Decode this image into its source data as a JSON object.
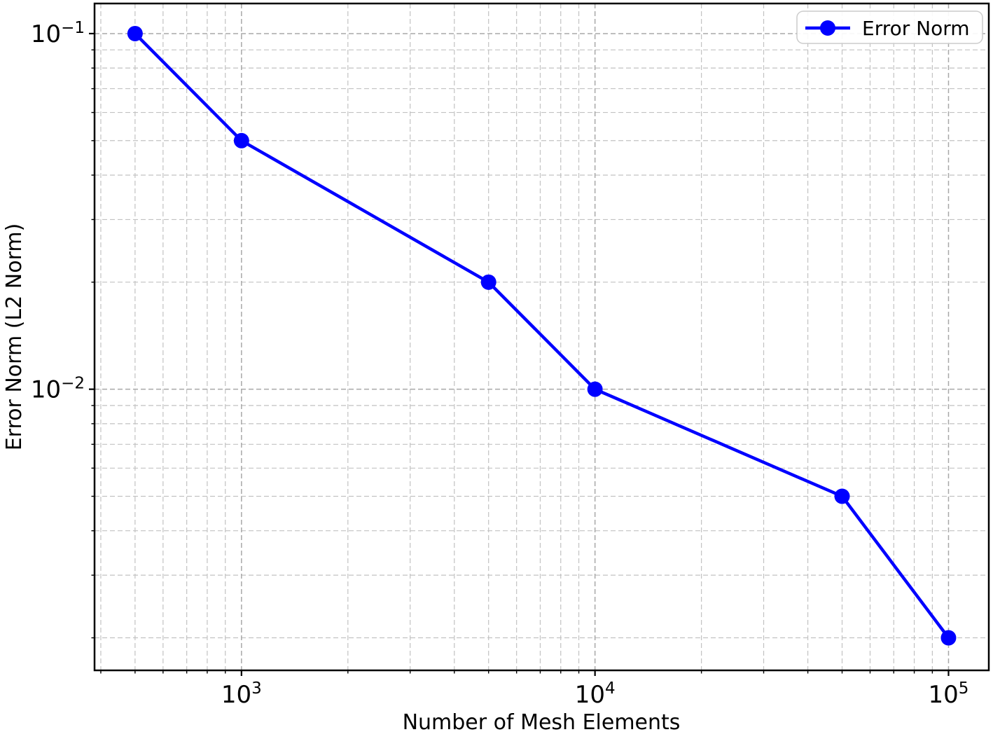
{
  "chart_data": {
    "type": "line",
    "title": "",
    "xlabel": "Number of Mesh Elements",
    "ylabel": "Error Norm (L2 Norm)",
    "xscale": "log",
    "yscale": "log",
    "xlim": [
      384,
      130000
    ],
    "ylim": [
      0.00162,
      0.1215
    ],
    "x": [
      500,
      1000,
      5000,
      10000,
      50000,
      100000
    ],
    "series": [
      {
        "name": "Error Norm",
        "color": "#0000ff",
        "values": [
          0.1,
          0.05,
          0.02,
          0.01,
          0.005,
          0.002
        ],
        "marker": "circle",
        "linewidth": 4.5,
        "markersize": 11
      }
    ],
    "x_major_ticks": [
      {
        "value": 1000,
        "base": "10",
        "exp": "3"
      },
      {
        "value": 10000,
        "base": "10",
        "exp": "4"
      },
      {
        "value": 100000,
        "base": "10",
        "exp": "5"
      }
    ],
    "y_major_ticks": [
      {
        "value": 0.1,
        "base": "10",
        "exp": "−1"
      },
      {
        "value": 0.01,
        "base": "10",
        "exp": "−2"
      }
    ],
    "grid": {
      "which": "both",
      "linestyle": "dashed",
      "major_color": "#a8a8a8",
      "minor_color": "#c2c2c2"
    },
    "legend": {
      "position": "upper right",
      "entries": [
        {
          "label": "Error Norm",
          "color": "#0000ff"
        }
      ]
    },
    "axis_color": "#000000",
    "background": "#ffffff"
  }
}
